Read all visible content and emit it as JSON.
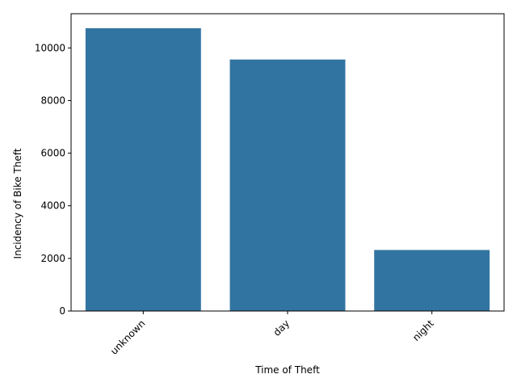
{
  "chart_data": {
    "type": "bar",
    "categories": [
      "unknown",
      "day",
      "night"
    ],
    "values": [
      10750,
      9560,
      2320
    ],
    "title": "",
    "xlabel": "Time of Theft",
    "ylabel": "Incidency of Bike Theft",
    "ylim": [
      0,
      11300
    ],
    "yticks": [
      0,
      2000,
      4000,
      6000,
      8000,
      10000
    ],
    "grid": false,
    "legend": "none",
    "bar_color": "#3274a1",
    "xtick_rotation": "45"
  }
}
